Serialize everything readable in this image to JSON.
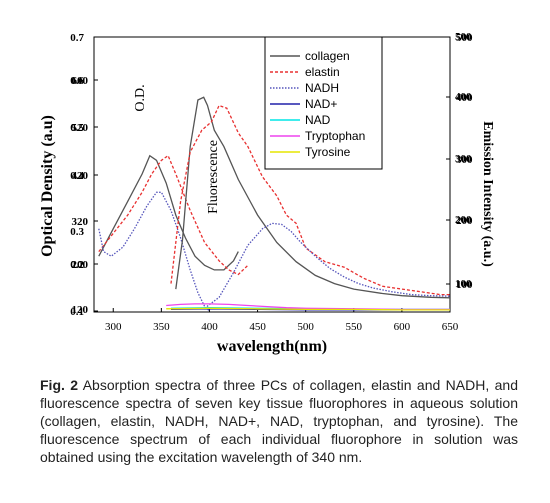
{
  "chart_data": {
    "type": "line",
    "x_axis": {
      "label": "wavelength(nm)",
      "range": [
        280,
        650
      ],
      "ticks": [
        "300",
        "350",
        "400",
        "450",
        "500",
        "550",
        "600",
        "650"
      ]
    },
    "left_axis": {
      "label": "Optical Density (a.u)",
      "ticks_bright": [
        "0.7",
        "0.6",
        "0.5",
        "0.4",
        "0.3",
        "0.2",
        "0.1"
      ],
      "ticks_pale": [
        "600",
        "520",
        "420",
        "320",
        "200",
        "120"
      ]
    },
    "right_axis": {
      "label": "Emission Intensity (a.u.)",
      "ticks": [
        "500",
        "400",
        "300",
        "200",
        "100"
      ],
      "ticks_pale": [
        "500",
        "400",
        "300",
        "200",
        "100"
      ]
    },
    "annotations": [
      "O.D.",
      "Fluorescence"
    ],
    "legend": {
      "position": "top-right",
      "entries": [
        "collagen",
        "elastin",
        "NADH",
        "NAD+",
        "NAD",
        "Tryptophan",
        "Tyrosine"
      ]
    },
    "series": [
      {
        "name": "collagen",
        "group": "absorption",
        "axis": "left",
        "color": "#555555",
        "dash": "none",
        "points": [
          [
            285,
            0.22
          ],
          [
            300,
            0.28
          ],
          [
            315,
            0.34
          ],
          [
            330,
            0.4
          ],
          [
            338,
            0.44
          ],
          [
            345,
            0.43
          ],
          [
            355,
            0.38
          ],
          [
            365,
            0.31
          ],
          [
            375,
            0.26
          ],
          [
            385,
            0.22
          ],
          [
            395,
            0.2
          ],
          [
            405,
            0.19
          ],
          [
            415,
            0.19
          ],
          [
            425,
            0.21
          ],
          [
            430,
            0.23
          ]
        ]
      },
      {
        "name": "elastin",
        "group": "absorption",
        "axis": "left",
        "color": "#e83030",
        "dash": "3,2",
        "points": [
          [
            285,
            0.23
          ],
          [
            300,
            0.27
          ],
          [
            315,
            0.31
          ],
          [
            330,
            0.36
          ],
          [
            340,
            0.4
          ],
          [
            350,
            0.43
          ],
          [
            357,
            0.44
          ],
          [
            365,
            0.4
          ],
          [
            380,
            0.32
          ],
          [
            395,
            0.25
          ],
          [
            410,
            0.21
          ],
          [
            420,
            0.19
          ],
          [
            430,
            0.18
          ],
          [
            440,
            0.2
          ]
        ]
      },
      {
        "name": "NADH",
        "group": "absorption",
        "axis": "left",
        "color": "#5555bb",
        "dash": "1.5,1.5",
        "points": [
          [
            285,
            0.28
          ],
          [
            290,
            0.23
          ],
          [
            298,
            0.22
          ],
          [
            310,
            0.24
          ],
          [
            322,
            0.28
          ],
          [
            335,
            0.33
          ],
          [
            345,
            0.36
          ],
          [
            350,
            0.36
          ],
          [
            360,
            0.32
          ],
          [
            370,
            0.26
          ],
          [
            380,
            0.19
          ],
          [
            388,
            0.14
          ],
          [
            395,
            0.11
          ],
          [
            400,
            0.1
          ]
        ]
      },
      {
        "name": "collagen",
        "group": "fluorescence",
        "axis": "right",
        "color": "#555555",
        "dash": "none",
        "points": [
          [
            365,
            40
          ],
          [
            372,
            130
          ],
          [
            380,
            300
          ],
          [
            388,
            385
          ],
          [
            394,
            390
          ],
          [
            398,
            375
          ],
          [
            405,
            330
          ],
          [
            415,
            300
          ],
          [
            430,
            240
          ],
          [
            450,
            175
          ],
          [
            470,
            125
          ],
          [
            490,
            90
          ],
          [
            510,
            65
          ],
          [
            530,
            50
          ],
          [
            550,
            40
          ],
          [
            580,
            32
          ],
          [
            600,
            28
          ],
          [
            630,
            25
          ],
          [
            650,
            24
          ]
        ]
      },
      {
        "name": "elastin",
        "group": "fluorescence",
        "axis": "right",
        "color": "#e83030",
        "dash": "3,2",
        "points": [
          [
            360,
            50
          ],
          [
            370,
            200
          ],
          [
            380,
            290
          ],
          [
            392,
            330
          ],
          [
            402,
            345
          ],
          [
            410,
            375
          ],
          [
            418,
            370
          ],
          [
            430,
            325
          ],
          [
            440,
            300
          ],
          [
            455,
            245
          ],
          [
            470,
            210
          ],
          [
            480,
            175
          ],
          [
            490,
            160
          ],
          [
            500,
            115
          ],
          [
            520,
            90
          ],
          [
            540,
            80
          ],
          [
            560,
            60
          ],
          [
            580,
            45
          ],
          [
            600,
            40
          ],
          [
            620,
            35
          ],
          [
            640,
            30
          ],
          [
            650,
            30
          ]
        ]
      },
      {
        "name": "NADH",
        "group": "fluorescence",
        "axis": "right",
        "color": "#5555bb",
        "dash": "1.5,1.5",
        "points": [
          [
            395,
            5
          ],
          [
            410,
            25
          ],
          [
            425,
            70
          ],
          [
            440,
            120
          ],
          [
            455,
            150
          ],
          [
            465,
            160
          ],
          [
            475,
            158
          ],
          [
            485,
            145
          ],
          [
            495,
            125
          ],
          [
            510,
            100
          ],
          [
            525,
            78
          ],
          [
            540,
            62
          ],
          [
            555,
            50
          ],
          [
            570,
            42
          ],
          [
            590,
            35
          ],
          [
            610,
            30
          ],
          [
            630,
            28
          ],
          [
            650,
            27
          ]
        ]
      },
      {
        "name": "NAD+",
        "group": "fluorescence",
        "axis": "right",
        "color": "#2020aa",
        "dash": "none",
        "points": [
          [
            360,
            3
          ],
          [
            400,
            4
          ],
          [
            450,
            3
          ],
          [
            500,
            2
          ],
          [
            550,
            2
          ],
          [
            600,
            2
          ],
          [
            650,
            2
          ]
        ]
      },
      {
        "name": "NAD",
        "group": "fluorescence",
        "axis": "right",
        "color": "#00e5e5",
        "dash": "none",
        "points": [
          [
            360,
            5
          ],
          [
            400,
            6
          ],
          [
            450,
            5
          ],
          [
            500,
            4
          ],
          [
            550,
            3
          ],
          [
            600,
            3
          ],
          [
            650,
            3
          ]
        ]
      },
      {
        "name": "Tryptophan",
        "group": "fluorescence",
        "axis": "right",
        "color": "#ee44ee",
        "dash": "none",
        "points": [
          [
            355,
            10
          ],
          [
            370,
            12
          ],
          [
            385,
            13
          ],
          [
            400,
            13
          ],
          [
            420,
            12
          ],
          [
            440,
            10
          ],
          [
            460,
            8
          ],
          [
            480,
            6
          ],
          [
            500,
            5
          ],
          [
            550,
            4
          ],
          [
            600,
            3
          ],
          [
            650,
            3
          ]
        ]
      },
      {
        "name": "Tyrosine",
        "group": "fluorescence",
        "axis": "right",
        "color": "#e6e600",
        "dash": "none",
        "points": [
          [
            355,
            4
          ],
          [
            400,
            5
          ],
          [
            450,
            4
          ],
          [
            500,
            3
          ],
          [
            550,
            3
          ],
          [
            600,
            2
          ],
          [
            650,
            2
          ]
        ]
      }
    ]
  },
  "caption": {
    "label": "Fig. 2",
    "text": " Absorption spectra of three PCs of collagen, elastin and NADH, and fluorescence spectra of seven key tissue fluorophores in aqueous solution (collagen, elastin, NADH, NAD+, NAD, tryptophan, and tyrosine). The fluorescence spectrum of each individual fluorophore in solution was obtained using the excitation wavelength of 340 nm."
  }
}
